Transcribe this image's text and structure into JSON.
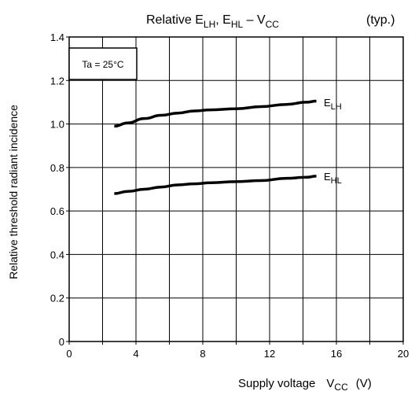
{
  "chart_data": {
    "type": "line",
    "title": {
      "main": "Relative E",
      "sub1": "LH",
      "mid": ", E",
      "sub2": "HL",
      "dash": " – V",
      "sub3": "CC"
    },
    "note": "(typ.)",
    "annotation": "Ta = 25°C",
    "xlabel": {
      "main": "Supply voltage",
      "var": "V",
      "sub": "CC",
      "unit": "(V)"
    },
    "ylabel": "Relative threshold radiant incidence",
    "xlim": [
      0,
      20
    ],
    "ylim": [
      0,
      1.4
    ],
    "x_ticks": [
      "0",
      "4",
      "8",
      "12",
      "16",
      "20"
    ],
    "y_ticks": [
      "0",
      "0.2",
      "0.4",
      "0.6",
      "0.8",
      "1.0",
      "1.2",
      "1.4"
    ],
    "grid": true,
    "series": [
      {
        "name": {
          "main": "E",
          "sub": "LH"
        },
        "x": [
          2.7,
          3.5,
          4.5,
          5.5,
          6.5,
          7.5,
          8.5,
          10,
          11.5,
          13,
          14.2,
          14.8
        ],
        "y": [
          0.99,
          1.005,
          1.025,
          1.04,
          1.05,
          1.06,
          1.065,
          1.07,
          1.08,
          1.09,
          1.1,
          1.105
        ]
      },
      {
        "name": {
          "main": "E",
          "sub": "HL"
        },
        "x": [
          2.7,
          3.5,
          4.5,
          5.5,
          6.5,
          7.5,
          8.5,
          10,
          11.5,
          13,
          14.2,
          14.8
        ],
        "y": [
          0.68,
          0.69,
          0.7,
          0.71,
          0.72,
          0.725,
          0.73,
          0.735,
          0.74,
          0.75,
          0.755,
          0.76
        ]
      }
    ]
  }
}
